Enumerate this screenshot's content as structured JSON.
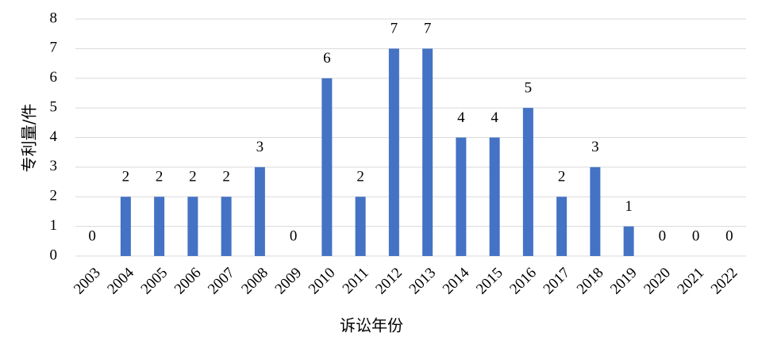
{
  "chart_data": {
    "type": "bar",
    "categories": [
      "2003",
      "2004",
      "2005",
      "2006",
      "2007",
      "2008",
      "2009",
      "2010",
      "2011",
      "2012",
      "2013",
      "2014",
      "2015",
      "2016",
      "2017",
      "2018",
      "2019",
      "2020",
      "2021",
      "2022"
    ],
    "values": [
      0,
      2,
      2,
      2,
      2,
      3,
      0,
      6,
      2,
      7,
      7,
      4,
      4,
      5,
      2,
      3,
      1,
      0,
      0,
      0
    ],
    "color": "#4472c4",
    "xlabel": "诉讼年份",
    "ylabel": "专利量/件",
    "ylim": [
      0,
      8
    ],
    "yticks": [
      0,
      1,
      2,
      3,
      4,
      5,
      6,
      7,
      8
    ],
    "grid": true,
    "data_labels": true
  }
}
